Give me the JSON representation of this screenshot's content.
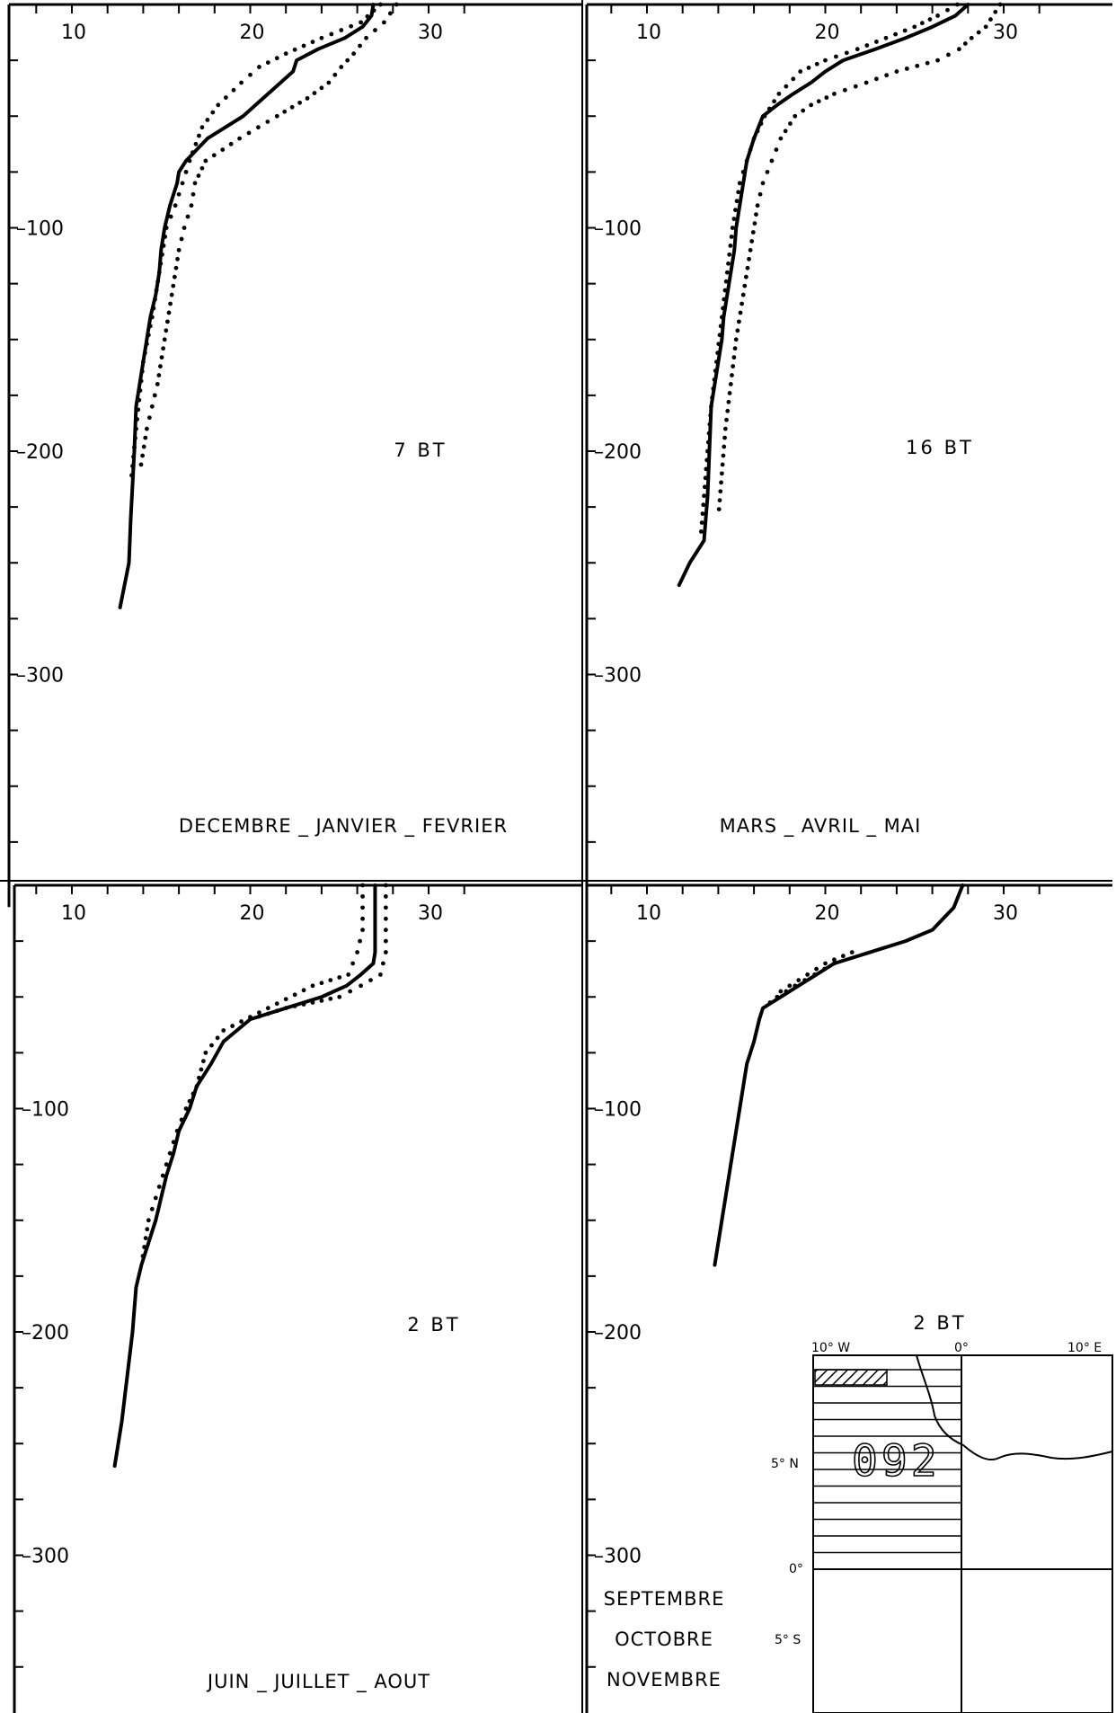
{
  "chart_data": [
    {
      "type": "line",
      "xlim": [
        10,
        30
      ],
      "ylim": [
        0,
        380
      ],
      "y_inverted": true,
      "x_ticks": [
        "10",
        "20",
        "30"
      ],
      "y_ticks": [
        "100",
        "200",
        "300"
      ],
      "count_label": "7 BT",
      "season_label": [
        "DECEMBRE _ JANVIER _ FEVRIER"
      ],
      "mean": {
        "temp": [
          26.9,
          26.8,
          26.3,
          25.3,
          23.8,
          22.6,
          22.4,
          21.0,
          19.6,
          18.6,
          17.6,
          17.0,
          16.4,
          16.0,
          15.9,
          15.5,
          15.2,
          15.0,
          14.9,
          14.7,
          14.4,
          14.2,
          14.0,
          13.8,
          13.6,
          13.5,
          13.3,
          13.2,
          12.7
        ],
        "depth": [
          0,
          5,
          10,
          15,
          20,
          25,
          30,
          40,
          50,
          55,
          60,
          65,
          70,
          75,
          80,
          90,
          100,
          110,
          120,
          130,
          140,
          150,
          160,
          170,
          180,
          200,
          230,
          250,
          270
        ]
      },
      "upper": {
        "temp": [
          28.2,
          27.5,
          26.5,
          25.8,
          25.1,
          24.4,
          23.2,
          21.5,
          19.4,
          17.5,
          16.9,
          16.7,
          16.3,
          16.0,
          15.6,
          15.2,
          14.8,
          14.5,
          14.2,
          13.8
        ],
        "depth": [
          0,
          8,
          15,
          22,
          28,
          35,
          42,
          50,
          60,
          70,
          80,
          90,
          100,
          110,
          130,
          150,
          170,
          180,
          190,
          210
        ]
      },
      "lower": {
        "temp": [
          27.3,
          26.2,
          24.0,
          22.0,
          20.5,
          19.5,
          18.2,
          17.3,
          16.6,
          16.2,
          15.8,
          15.3,
          14.9,
          14.5,
          14.0,
          13.6,
          13.3
        ],
        "depth": [
          0,
          8,
          15,
          22,
          28,
          35,
          45,
          55,
          70,
          80,
          90,
          100,
          120,
          140,
          160,
          190,
          215
        ]
      }
    },
    {
      "type": "line",
      "xlim": [
        10,
        30
      ],
      "ylim": [
        0,
        380
      ],
      "y_inverted": true,
      "x_ticks": [
        "10",
        "20",
        "30"
      ],
      "y_ticks": [
        "100",
        "200",
        "300"
      ],
      "count_label": "16 BT",
      "season_label": [
        "MARS _ AVRIL _ MAI"
      ],
      "mean": {
        "temp": [
          28.0,
          27.3,
          26.0,
          24.5,
          22.8,
          21.0,
          20.0,
          19.2,
          18.2,
          17.3,
          16.5,
          16.0,
          15.6,
          15.4,
          15.2,
          15.0,
          14.9,
          14.7,
          14.5,
          14.3,
          14.2,
          14.0,
          13.8,
          13.6,
          13.5,
          13.4,
          13.2,
          12.4,
          11.8
        ],
        "depth": [
          0,
          5,
          10,
          15,
          20,
          25,
          30,
          35,
          40,
          45,
          50,
          60,
          70,
          80,
          90,
          100,
          110,
          120,
          130,
          140,
          150,
          160,
          170,
          180,
          200,
          220,
          240,
          250,
          260
        ]
      },
      "upper": {
        "temp": [
          29.8,
          29.0,
          28.2,
          27.5,
          26.3,
          24.0,
          22.3,
          20.5,
          19.2,
          18.3,
          17.5,
          17.0,
          16.5,
          16.2,
          15.8,
          15.4,
          15.0,
          14.7,
          14.4,
          14.2,
          14.0
        ],
        "depth": [
          0,
          10,
          15,
          20,
          25,
          30,
          35,
          40,
          45,
          50,
          60,
          70,
          80,
          90,
          110,
          130,
          150,
          170,
          190,
          210,
          230
        ]
      },
      "lower": {
        "temp": [
          27.4,
          26.3,
          25.0,
          23.4,
          21.8,
          20.0,
          18.6,
          17.4,
          16.6,
          16.0,
          15.6,
          15.2,
          14.8,
          14.5,
          14.2,
          13.9,
          13.6,
          13.4,
          13.2,
          13.0
        ],
        "depth": [
          0,
          5,
          10,
          15,
          20,
          25,
          30,
          40,
          50,
          60,
          70,
          80,
          100,
          120,
          140,
          160,
          180,
          200,
          220,
          240
        ]
      }
    },
    {
      "type": "line",
      "xlim": [
        10,
        30
      ],
      "ylim": [
        0,
        380
      ],
      "y_inverted": true,
      "x_ticks": [
        "10",
        "20",
        "30"
      ],
      "y_ticks": [
        "100",
        "200",
        "300"
      ],
      "count_label": "2 BT",
      "season_label": [
        "JUIN _ JUILLET  _  AOUT"
      ],
      "mean": {
        "temp": [
          27.0,
          27.0,
          27.0,
          27.0,
          26.9,
          26.2,
          25.4,
          24.0,
          22.0,
          20.0,
          18.5,
          17.8,
          17.0,
          16.6,
          16.0,
          15.7,
          15.3,
          15.0,
          14.7,
          14.3,
          13.9,
          13.6,
          13.5,
          13.4,
          13.1,
          12.8,
          12.4
        ],
        "depth": [
          0,
          10,
          20,
          30,
          35,
          40,
          45,
          50,
          55,
          60,
          70,
          80,
          90,
          100,
          110,
          120,
          130,
          140,
          150,
          160,
          170,
          180,
          190,
          200,
          220,
          240,
          260
        ]
      },
      "upper": {
        "temp": [
          27.6,
          27.6,
          27.6,
          27.6,
          27.3,
          26.2,
          25.0,
          22.0,
          20.0
        ],
        "depth": [
          0,
          10,
          20,
          30,
          40,
          45,
          50,
          55,
          60
        ]
      },
      "lower": {
        "temp": [
          26.3,
          26.3,
          26.3,
          26.0,
          25.5,
          23.5,
          21.0,
          18.5,
          17.5,
          17.0,
          16.4,
          15.9,
          15.5,
          15.1,
          14.7,
          14.3,
          13.9
        ],
        "depth": [
          0,
          10,
          20,
          30,
          40,
          45,
          55,
          65,
          75,
          90,
          100,
          110,
          120,
          130,
          140,
          150,
          170
        ]
      }
    },
    {
      "type": "line",
      "xlim": [
        10,
        30
      ],
      "ylim": [
        0,
        380
      ],
      "y_inverted": true,
      "x_ticks": [
        "10",
        "20",
        "30"
      ],
      "y_ticks": [
        "100",
        "200",
        "300"
      ],
      "count_label": "2 BT",
      "season_label": [
        "SEPTEMBRE",
        "OCTOBRE",
        "NOVEMBRE"
      ],
      "mean": {
        "temp": [
          27.7,
          27.2,
          26.0,
          24.5,
          22.5,
          20.5,
          19.5,
          18.5,
          17.5,
          16.5,
          16.3,
          16.0,
          15.6,
          15.4,
          15.2,
          15.0,
          14.8,
          14.6,
          14.4,
          14.2,
          14.0,
          13.8
        ],
        "depth": [
          0,
          10,
          20,
          25,
          30,
          35,
          40,
          45,
          50,
          55,
          60,
          70,
          80,
          90,
          100,
          110,
          120,
          130,
          140,
          150,
          160,
          170
        ]
      },
      "upper": {
        "temp": [
          21.5,
          20.0,
          19.0,
          18.0,
          17.0
        ],
        "depth": [
          30,
          35,
          40,
          45,
          50
        ]
      },
      "lower": {
        "temp": [
          20.5,
          19.4,
          18.3,
          17.3,
          16.5
        ],
        "depth": [
          35,
          40,
          45,
          50,
          55
        ]
      }
    }
  ],
  "inset": {
    "x_labels": [
      "10° W",
      "0°",
      "10° E"
    ],
    "y_labels": [
      "5° N",
      "0°",
      "5° S"
    ],
    "stamp": "092"
  }
}
